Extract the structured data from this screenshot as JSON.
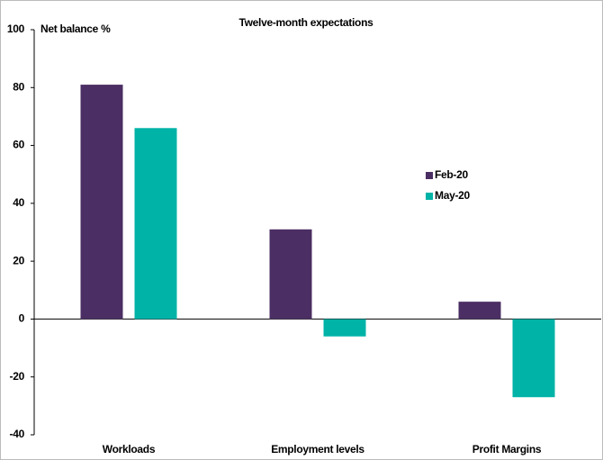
{
  "chart_data": {
    "type": "bar",
    "title": "Twelve-month expectations",
    "y_label": "Net balance %",
    "categories": [
      "Workloads",
      "Employment levels",
      "Profit Margins"
    ],
    "series": [
      {
        "name": "Feb-20",
        "color": "#4b2e63",
        "values": [
          81,
          31,
          6
        ]
      },
      {
        "name": "May-20",
        "color": "#00b3a7",
        "values": [
          66,
          -6,
          -27
        ]
      }
    ],
    "ylim": [
      -40,
      100
    ],
    "yticks": [
      -40,
      -20,
      0,
      20,
      40,
      60,
      80,
      100
    ],
    "grid": false,
    "legend": "right"
  }
}
